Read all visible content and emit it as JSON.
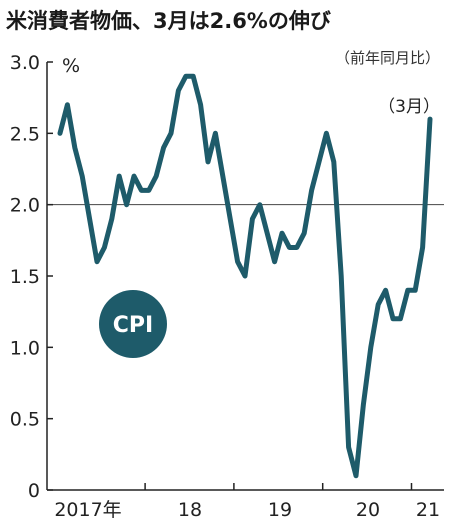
{
  "chart_data": {
    "type": "line",
    "title": "米消費者物価、3月は2.6%の伸び",
    "subtitle": "（前年同月比）",
    "ylabel": "%",
    "ylim": [
      0,
      3.0
    ],
    "yticks": [
      "3.0",
      "2.5",
      "2.0",
      "1.5",
      "1.0",
      "0.5",
      "0"
    ],
    "reference_line": 2.0,
    "x_labels": [
      "2017年",
      "18",
      "19",
      "20",
      "21"
    ],
    "annotation": "（3月）",
    "badge": "CPI",
    "line_color": "#1e5b6a",
    "series": [
      {
        "x": [
          "2017-01",
          "2017-02",
          "2017-03",
          "2017-04",
          "2017-05",
          "2017-06",
          "2017-07",
          "2017-08",
          "2017-09",
          "2017-10",
          "2017-11",
          "2017-12",
          "2018-01",
          "2018-02",
          "2018-03",
          "2018-04",
          "2018-05",
          "2018-06",
          "2018-07",
          "2018-08",
          "2018-09",
          "2018-10",
          "2018-11",
          "2018-12",
          "2019-01",
          "2019-02",
          "2019-03",
          "2019-04",
          "2019-05",
          "2019-06",
          "2019-07",
          "2019-08",
          "2019-09",
          "2019-10",
          "2019-11",
          "2019-12",
          "2020-01",
          "2020-02",
          "2020-03",
          "2020-04",
          "2020-05",
          "2020-06",
          "2020-07",
          "2020-08",
          "2020-09",
          "2020-10",
          "2020-11",
          "2020-12",
          "2021-01",
          "2021-02",
          "2021-03"
        ],
        "values": [
          2.5,
          2.7,
          2.4,
          2.2,
          1.9,
          1.6,
          1.7,
          1.9,
          2.2,
          2.0,
          2.2,
          2.1,
          2.1,
          2.2,
          2.4,
          2.5,
          2.8,
          2.9,
          2.9,
          2.7,
          2.3,
          2.5,
          2.2,
          1.9,
          1.6,
          1.5,
          1.9,
          2.0,
          1.8,
          1.6,
          1.8,
          1.7,
          1.7,
          1.8,
          2.1,
          2.3,
          2.5,
          2.3,
          1.5,
          0.3,
          0.1,
          0.6,
          1.0,
          1.3,
          1.4,
          1.2,
          1.2,
          1.4,
          1.4,
          1.7,
          2.6
        ]
      }
    ]
  }
}
